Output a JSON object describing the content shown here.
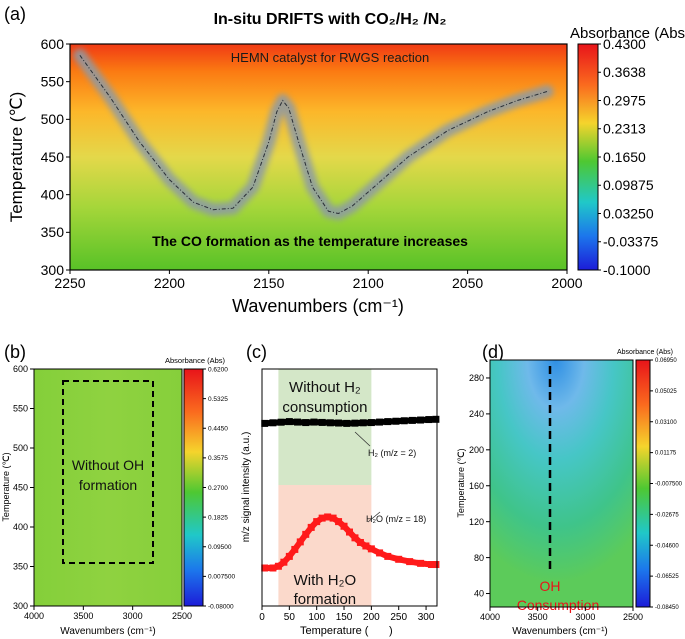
{
  "chart_data": [
    {
      "panel": "(a)",
      "type": "heatmap",
      "title": "In-situ DRIFTS with CO₂/H₂ /N₂",
      "xlabel": "Wavenumbers (cm⁻¹)",
      "ylabel": "Temperature (℃)",
      "xlim": [
        2250,
        2000
      ],
      "ylim": [
        300,
        600
      ],
      "x_ticks": [
        "2250",
        "2200",
        "2150",
        "2100",
        "2050",
        "2000"
      ],
      "y_ticks": [
        "300",
        "350",
        "400",
        "450",
        "500",
        "550",
        "600"
      ],
      "colorbar_label": "Absorbance (Abs)",
      "colorbar_ticks": [
        "0.4300",
        "0.3638",
        "0.2975",
        "0.2313",
        "0.1650",
        "0.09875",
        "0.03250",
        "-0.03375",
        "-0.1000"
      ],
      "annotations": [
        "HEMN catalyst for RWGS reaction",
        "The CO formation as the temperature increases"
      ],
      "trace": {
        "x": [
          2245,
          2230,
          2215,
          2200,
          2188,
          2178,
          2168,
          2158,
          2150,
          2146,
          2143,
          2140,
          2135,
          2128,
          2120,
          2115,
          2108,
          2095,
          2080,
          2060,
          2040,
          2025,
          2010
        ],
        "y": [
          585,
          530,
          470,
          420,
          390,
          380,
          382,
          410,
          470,
          510,
          525,
          515,
          470,
          410,
          378,
          375,
          385,
          415,
          450,
          485,
          510,
          525,
          537
        ]
      }
    },
    {
      "panel": "(b)",
      "type": "heatmap",
      "xlabel": "Wavenumbers (cm⁻¹)",
      "ylabel": "Temperature (℃)",
      "xlim": [
        4000,
        2500
      ],
      "ylim": [
        300,
        600
      ],
      "x_ticks": [
        "4000",
        "3500",
        "3000",
        "2500"
      ],
      "y_ticks": [
        "300",
        "350",
        "400",
        "450",
        "500",
        "550",
        "600"
      ],
      "colorbar_label": "Absorbance (Abs)",
      "colorbar_ticks": [
        "0.6200",
        "0.5325",
        "0.4450",
        "0.3575",
        "0.2700",
        "0.1825",
        "0.09500",
        "0.007500",
        "-0.08000"
      ],
      "annotations": [
        "Without OH",
        "formation"
      ]
    },
    {
      "panel": "(c)",
      "type": "scatter",
      "xlabel": "Temperature (",
      "xlabel_end": ")",
      "ylabel": "m/z signal intensity (a.u.)",
      "xlim": [
        0,
        320
      ],
      "x_ticks": [
        "0",
        "50",
        "100",
        "150",
        "200",
        "250",
        "300"
      ],
      "annotations": [
        "Without H₂",
        "consumption",
        "With H₂O",
        "formation"
      ],
      "series": [
        {
          "name": "H₂ (m/z = 2)",
          "color": "#000000",
          "x": [
            5,
            20,
            35,
            50,
            65,
            80,
            95,
            110,
            125,
            140,
            155,
            170,
            185,
            200,
            215,
            230,
            245,
            260,
            275,
            290,
            305,
            318
          ],
          "y": [
            0.55,
            0.6,
            0.65,
            0.7,
            0.66,
            0.62,
            0.66,
            0.63,
            0.6,
            0.58,
            0.55,
            0.57,
            0.6,
            0.62,
            0.66,
            0.7,
            0.73,
            0.77,
            0.8,
            0.83,
            0.87,
            0.89
          ]
        },
        {
          "name": "H₂O (m/z = 18)",
          "color": "#ff1a1a",
          "x": [
            5,
            20,
            30,
            40,
            50,
            60,
            70,
            80,
            90,
            100,
            110,
            120,
            130,
            140,
            150,
            160,
            170,
            180,
            190,
            200,
            215,
            230,
            250,
            270,
            290,
            310,
            318
          ],
          "y": [
            0.0,
            0.0,
            0.03,
            0.1,
            0.2,
            0.32,
            0.45,
            0.58,
            0.7,
            0.8,
            0.86,
            0.88,
            0.86,
            0.8,
            0.72,
            0.62,
            0.52,
            0.44,
            0.38,
            0.33,
            0.26,
            0.2,
            0.15,
            0.11,
            0.08,
            0.06,
            0.06
          ]
        }
      ]
    },
    {
      "panel": "(d)",
      "type": "heatmap",
      "xlabel": "Wavenumbers (cm⁻¹)",
      "ylabel": "Temperature (℃)",
      "xlim": [
        4000,
        2500
      ],
      "ylim": [
        25,
        300
      ],
      "x_ticks": [
        "4000",
        "3500",
        "3000",
        "2500"
      ],
      "y_ticks": [
        "40",
        "80",
        "120",
        "160",
        "200",
        "240",
        "280"
      ],
      "colorbar_label": "Absorbance (Abs)",
      "colorbar_ticks": [
        "0.06950",
        "0.05025",
        "0.03100",
        "0.01175",
        "-0.007500",
        "-0.02675",
        "-0.04600",
        "-0.06525",
        "-0.08450"
      ],
      "annotations": [
        "OH",
        "Consumption"
      ]
    }
  ]
}
